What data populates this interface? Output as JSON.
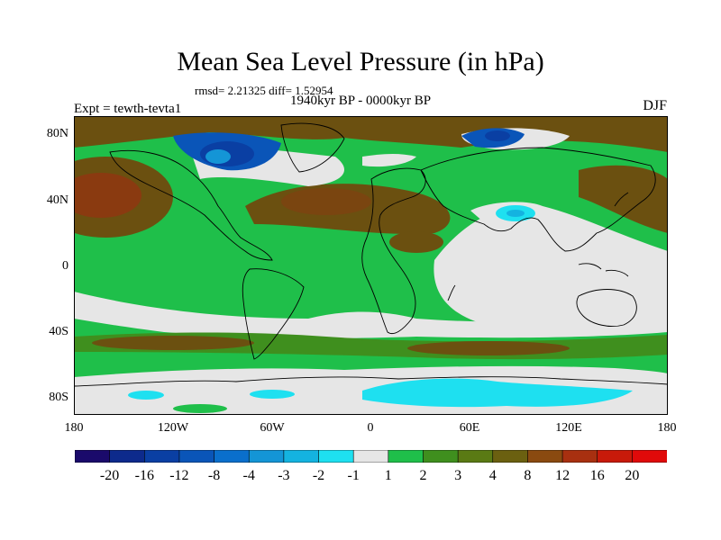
{
  "title": "Mean Sea Level Pressure (in hPa)",
  "stats": "rmsd= 2.21325 diff= 1.52954",
  "period": "1940kyr BP - 0000kyr BP",
  "experiment": "Expt = tewth-tevta1",
  "season": "DJF",
  "axes": {
    "lat_ticks": [
      "80N",
      "40N",
      "0",
      "40S",
      "80S"
    ],
    "lon_ticks": [
      "180",
      "120W",
      "60W",
      "0",
      "60E",
      "120E",
      "180"
    ]
  },
  "colorbar": {
    "labels": [
      "-20",
      "-16",
      "-12",
      "-8",
      "-4",
      "-3",
      "-2",
      "-1",
      "1",
      "2",
      "3",
      "4",
      "8",
      "12",
      "16",
      "20"
    ],
    "colors": [
      "#1a0a6b",
      "#0d2a8c",
      "#0a3fa3",
      "#0a55b8",
      "#0a6fcc",
      "#1495d6",
      "#14b3e0",
      "#1ee0f0",
      "#e6e6e6",
      "#1fbf4a",
      "#3f8f1e",
      "#5a7a14",
      "#6b6010",
      "#8a4a10",
      "#a83010",
      "#c81a0a",
      "#e00a0a"
    ]
  },
  "colors": {
    "land_green": "#1fbf4a",
    "white_band": "#e6e6e6",
    "brown": "#6b5010",
    "dark_brown": "#8a3a10",
    "blue": "#0a5fc0",
    "cyan": "#1ee0f0"
  }
}
